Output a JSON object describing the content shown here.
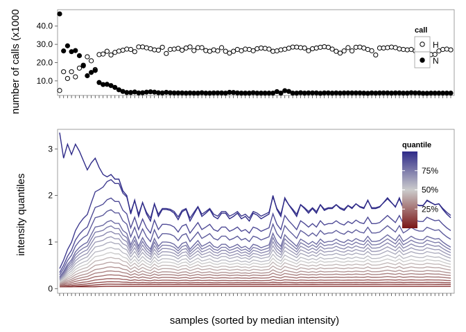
{
  "xlabel": "samples (sorted by median intensity)",
  "chart_data": [
    {
      "type": "scatter",
      "ylabel": "number of calls (x1000",
      "yticks": [
        "10.0",
        "20.0",
        "30.0",
        "40.0"
      ],
      "ytick_values": [
        10,
        20,
        30,
        40
      ],
      "ylim": [
        2,
        49
      ],
      "n_samples": 100,
      "legend": {
        "title": "call",
        "entries": [
          "H",
          "N"
        ]
      },
      "series": [
        {
          "name": "H",
          "marker": "open-circle",
          "values": [
            4.7,
            15,
            11.3,
            15,
            12.2,
            17,
            18.6,
            23.2,
            21,
            16.2,
            24.4,
            24.7,
            26.2,
            24.2,
            25.6,
            26.3,
            26.8,
            27.4,
            27.2,
            26,
            28.6,
            28.6,
            28.1,
            27.6,
            27,
            26.8,
            28.4,
            25,
            27.2,
            27.4,
            27.8,
            26.8,
            28,
            28.6,
            26.6,
            28.2,
            28.2,
            26.6,
            26.2,
            27,
            26.4,
            28.2,
            26.2,
            25.2,
            26.2,
            27.2,
            26.5,
            27.4,
            27.2,
            26.5,
            27.6,
            28,
            27.8,
            27.4,
            26.2,
            26.4,
            27,
            27.3,
            27.9,
            28.5,
            28.5,
            28.2,
            28,
            26.5,
            27.6,
            28,
            28.4,
            28.7,
            28.4,
            27.4,
            26.2,
            25.2,
            26.4,
            28.2,
            26.4,
            28.4,
            28.5,
            28,
            27.2,
            26.5,
            24.2,
            28,
            28,
            28.2,
            28.5,
            28.2,
            27.5,
            27.2,
            27,
            27.2,
            26.4,
            26.3,
            28.2,
            28.2,
            24.4,
            24.5,
            26.4,
            27.2,
            27.4,
            27
          ]
        },
        {
          "name": "N",
          "marker": "filled-circle",
          "values": [
            46.7,
            26.4,
            29.2,
            26,
            26.6,
            23.8,
            18.2,
            12.8,
            14.6,
            15.7,
            9.1,
            8,
            8.1,
            7.4,
            6.4,
            5.1,
            4.2,
            3.6,
            3.6,
            3.9,
            3.4,
            3.5,
            3.8,
            4,
            3.8,
            3.5,
            3.4,
            3.7,
            3.5,
            3.4,
            3.4,
            3.4,
            3.3,
            3.4,
            3.3,
            3.3,
            3.5,
            3.3,
            3.3,
            3.4,
            3.4,
            3.4,
            3.3,
            3.7,
            3.6,
            3.4,
            3.3,
            3.3,
            3.3,
            3.5,
            3.3,
            3.3,
            3.3,
            3.3,
            3.3,
            4.1,
            3.3,
            4.6,
            4.2,
            3.3,
            3.3,
            3.5,
            3.3,
            3.4,
            3.4,
            3.4,
            3.2,
            3.4,
            3.4,
            3.3,
            3.4,
            3.3,
            3.4,
            3.4,
            3.4,
            3.4,
            3.4,
            3.3,
            3.2,
            3.4,
            3.3,
            3.4,
            3.4,
            3.4,
            3.3,
            3.4,
            3.4,
            3.3,
            3.3,
            3.5,
            3.4,
            3.4,
            3.2,
            3.2,
            3.3,
            3.3,
            3.3,
            3.3,
            3.3,
            3.3
          ]
        }
      ]
    },
    {
      "type": "line",
      "ylabel": "intensity quantiles",
      "yticks": [
        "0",
        "1",
        "2",
        "3"
      ],
      "ytick_values": [
        0,
        1,
        2,
        3
      ],
      "ylim": [
        -0.1,
        3.42
      ],
      "n_samples": 100,
      "n_quantile_lines": 20,
      "legend": {
        "title": "quantile",
        "labels": [
          "75%",
          "50%",
          "25%"
        ],
        "label_positions": [
          0.75,
          0.5,
          0.25
        ],
        "colors": {
          "low": "#7a1616",
          "mid": "#cccccc",
          "high": "#2e2a88"
        }
      },
      "quantile_levels": [
        0.05,
        0.1,
        0.15,
        0.2,
        0.25,
        0.3,
        0.35,
        0.4,
        0.45,
        0.5,
        0.55,
        0.6,
        0.65,
        0.7,
        0.75,
        0.8,
        0.85,
        0.9,
        0.95,
        1.0
      ],
      "base_values": [
        0.05,
        0.09,
        0.13,
        0.18,
        0.24,
        0.3,
        0.36,
        0.43,
        0.5,
        0.57,
        0.64,
        0.72,
        0.79,
        0.86,
        0.93,
        1.0,
        1.18,
        1.38,
        1.72,
        1.95
      ],
      "top_line": [
        3.35,
        2.8,
        3.1,
        2.88,
        3.1,
        2.95,
        2.75,
        2.55,
        2.7,
        2.8,
        2.6,
        2.45,
        2.4,
        2.45,
        2.35,
        2.35,
        2.1,
        2.0,
        1.6,
        1.9,
        1.55,
        1.85,
        1.6,
        1.45,
        1.82,
        1.55,
        1.7,
        1.7,
        1.68,
        1.62,
        1.48,
        1.65,
        1.7,
        1.45,
        1.6,
        1.75,
        1.55,
        1.62,
        1.7,
        1.55,
        1.5,
        1.62,
        1.62,
        1.5,
        1.55,
        1.62,
        1.5,
        1.55,
        1.45,
        1.62,
        1.58,
        1.5,
        1.55,
        1.6,
        2.0,
        1.7,
        1.55,
        1.95,
        1.8,
        1.68,
        1.55,
        1.8,
        1.72,
        1.62,
        1.72,
        1.62,
        1.8,
        1.68,
        1.72,
        1.72,
        1.8,
        1.72,
        1.68,
        1.78,
        1.72,
        1.82,
        1.75,
        1.72,
        1.9,
        1.72,
        1.72,
        1.75,
        1.85,
        1.95,
        1.85,
        1.75,
        1.95,
        1.72,
        1.8,
        1.9,
        1.82,
        1.78,
        1.78,
        1.9,
        1.85,
        1.8,
        1.82,
        1.7,
        1.6,
        1.52
      ]
    }
  ]
}
